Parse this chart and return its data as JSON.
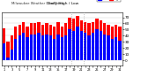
{
  "title_left": "Milwaukee Weather Dew Point",
  "title_center": "Daily High / Low",
  "bar_width": 0.38,
  "high_color": "#ff0000",
  "low_color": "#0000ff",
  "background_color": "#ffffff",
  "grid_color": "#cccccc",
  "ylim": [
    -8,
    78
  ],
  "yticks": [
    0,
    10,
    20,
    30,
    40,
    50,
    60,
    70
  ],
  "dashed_lines": [
    17.5,
    20.5
  ],
  "highs": [
    52,
    30,
    40,
    55,
    58,
    62,
    55,
    60,
    60,
    62,
    58,
    60,
    58,
    55,
    62,
    55,
    60,
    70,
    68,
    72,
    65,
    62,
    60,
    62,
    68,
    65,
    60,
    58,
    55,
    58,
    55
  ],
  "lows": [
    28,
    5,
    18,
    35,
    40,
    45,
    38,
    42,
    42,
    45,
    40,
    42,
    40,
    35,
    42,
    38,
    40,
    50,
    48,
    55,
    48,
    45,
    40,
    45,
    50,
    48,
    42,
    40,
    35,
    38,
    32
  ],
  "xlabels": [
    "1",
    "",
    "3",
    "",
    "5",
    "",
    "7",
    "",
    "9",
    "",
    "11",
    "",
    "13",
    "",
    "15",
    "",
    "17",
    "",
    "19",
    "",
    "21",
    "",
    "23",
    "",
    "25",
    "",
    "27",
    "",
    "29",
    "",
    "31"
  ]
}
